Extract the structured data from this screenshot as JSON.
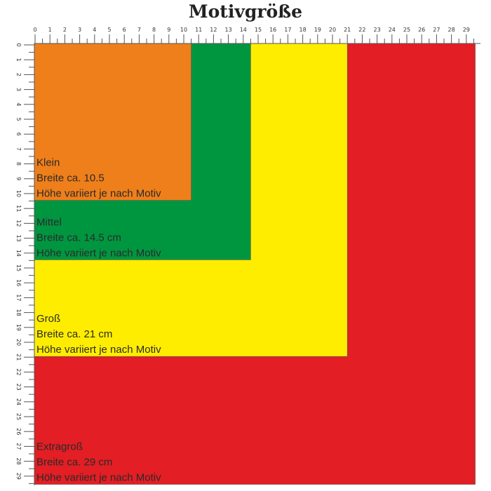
{
  "title": "Motivgröße",
  "ruler": {
    "min": 0,
    "max": 29,
    "unit": "cm"
  },
  "sizes": [
    {
      "name": "Extragroß",
      "width_cm": 29,
      "lines": [
        "Extragroß",
        "Breite ca. 29 cm",
        "Höhe variiert je nach Motiv"
      ],
      "color": "#e31e24"
    },
    {
      "name": "Groß",
      "width_cm": 21,
      "lines": [
        "Groß",
        "Breite ca. 21 cm",
        "Höhe variiert je nach Motiv"
      ],
      "color": "#ffed00"
    },
    {
      "name": "Mittel",
      "width_cm": 14.5,
      "lines": [
        "Mittel",
        "Breite ca. 14.5 cm",
        "Höhe variiert je nach Motiv"
      ],
      "color": "#009640"
    },
    {
      "name": "Klein",
      "width_cm": 10.5,
      "lines": [
        "Klein",
        "Breite ca. 10.5",
        "Höhe variiert je nach Motiv"
      ],
      "color": "#ef7f1a"
    }
  ]
}
